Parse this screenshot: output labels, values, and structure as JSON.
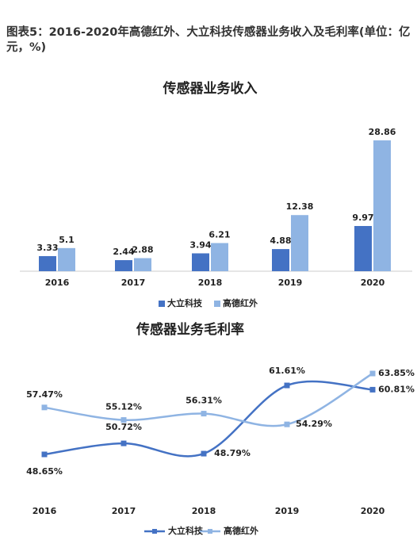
{
  "figure_title": "图表5：2016-2020年高德红外、大立科技传感器业务收入及毛利率(单位：亿元，%)",
  "chart_data": [
    {
      "type": "bar",
      "title": "传感器业务收入",
      "categories": [
        "2016",
        "2017",
        "2018",
        "2019",
        "2020"
      ],
      "series": [
        {
          "name": "大立科技",
          "color": "#4472c4",
          "values": [
            3.33,
            2.44,
            3.94,
            4.88,
            9.97
          ]
        },
        {
          "name": "高德红外",
          "color": "#8fb4e3",
          "values": [
            5.1,
            2.88,
            6.21,
            12.38,
            28.86
          ]
        }
      ]
    },
    {
      "type": "line",
      "title": "传感器业务毛利率",
      "categories": [
        "2016",
        "2017",
        "2018",
        "2019",
        "2020"
      ],
      "series": [
        {
          "name": "大立科技",
          "color": "#4472c4",
          "values": [
            48.65,
            50.72,
            48.79,
            61.61,
            60.81
          ],
          "value_labels": [
            "48.65%",
            "50.72%",
            "48.79%",
            "61.61%",
            "60.81%"
          ]
        },
        {
          "name": "高德红外",
          "color": "#8fb4e3",
          "values": [
            57.47,
            55.12,
            56.31,
            54.29,
            63.85
          ],
          "value_labels": [
            "57.47%",
            "55.12%",
            "56.31%",
            "54.29%",
            "63.85%"
          ]
        }
      ]
    }
  ]
}
